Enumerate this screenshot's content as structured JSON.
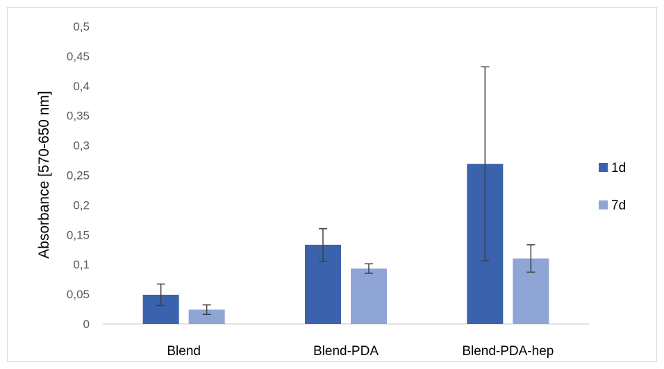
{
  "chart_data": {
    "type": "bar",
    "title": "",
    "xlabel": "",
    "ylabel": "Absorbance [570-650 nm]",
    "ylim": [
      0,
      0.5
    ],
    "yticks": [
      "0",
      "0,05",
      "0,1",
      "0,15",
      "0,2",
      "0,25",
      "0,3",
      "0,35",
      "0,4",
      "0,45",
      "0,5"
    ],
    "categories": [
      "Blend",
      "Blend-PDA",
      "Blend-PDA-hep"
    ],
    "series": [
      {
        "name": "1d",
        "color": "#3b63ad",
        "values": [
          0.049,
          0.133,
          0.269
        ],
        "err_low": [
          0.031,
          0.105,
          0.106
        ],
        "err_high": [
          0.067,
          0.16,
          0.432
        ]
      },
      {
        "name": "7d",
        "color": "#8ea5d6",
        "values": [
          0.024,
          0.093,
          0.11
        ],
        "err_low": [
          0.016,
          0.085,
          0.087
        ],
        "err_high": [
          0.032,
          0.101,
          0.133
        ]
      }
    ],
    "grid": false,
    "legend": "right",
    "error_bar_color": "#404040",
    "axis_color": "#d9d9d9"
  }
}
